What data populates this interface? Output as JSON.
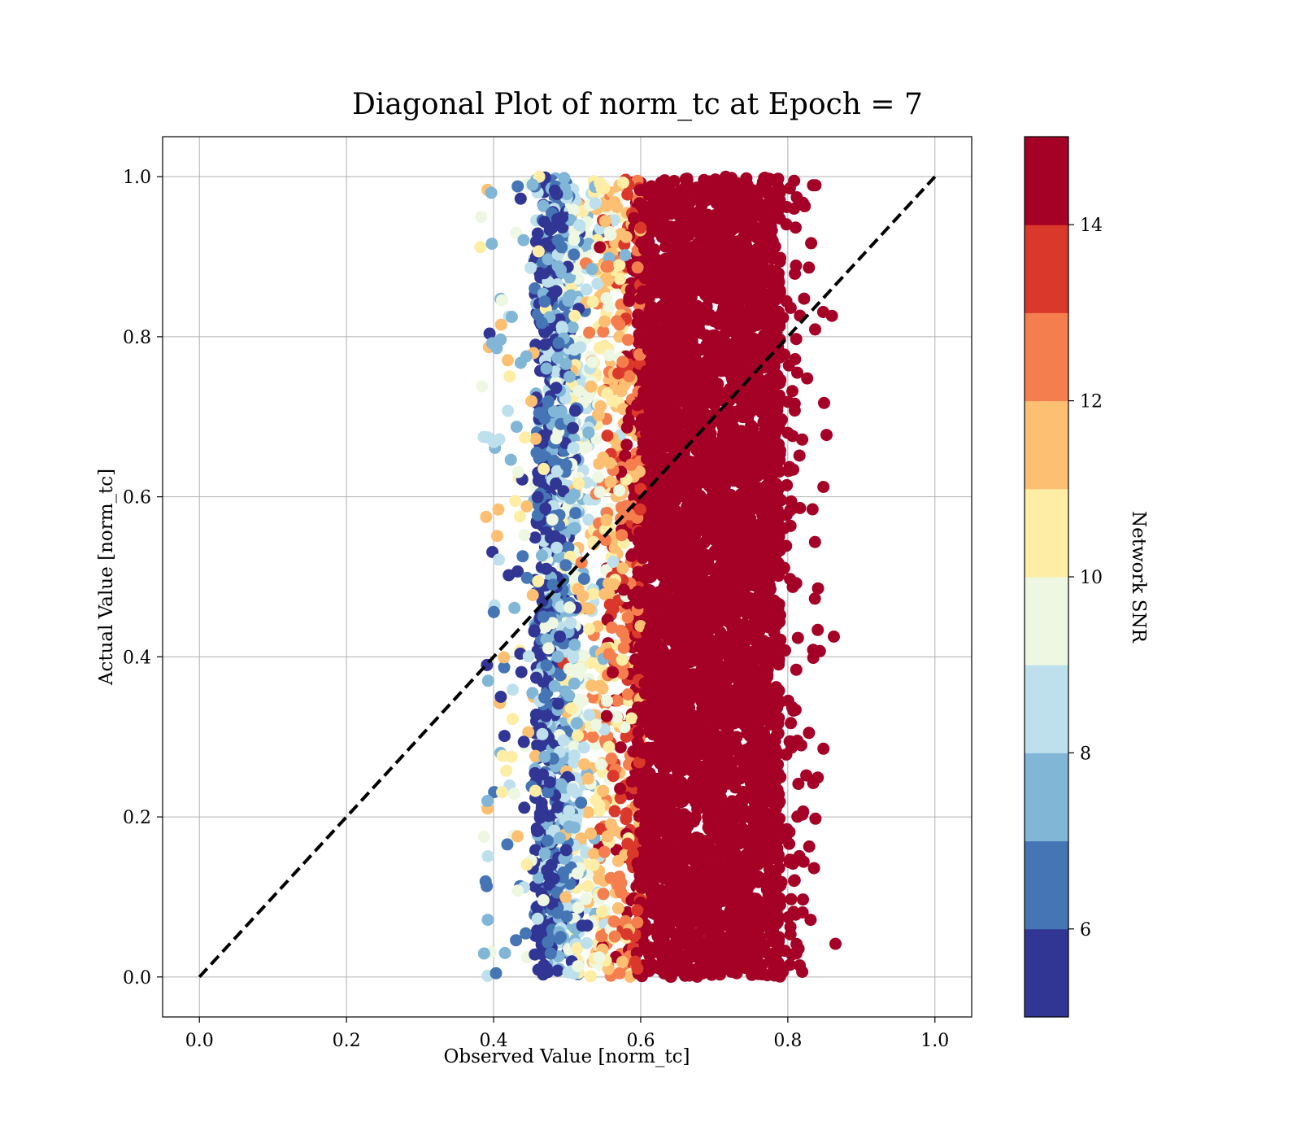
{
  "chart_data": {
    "type": "scatter",
    "title": "Diagonal Plot of norm_tc at Epoch = 7",
    "xlabel": "Observed Value [norm_tc]",
    "ylabel": "Actual Value [norm_tc]",
    "xlim": [
      -0.05,
      1.05
    ],
    "ylim": [
      -0.05,
      1.05
    ],
    "xticks": [
      "0.0",
      "0.2",
      "0.4",
      "0.6",
      "0.8",
      "1.0"
    ],
    "yticks": [
      "0.0",
      "0.2",
      "0.4",
      "0.6",
      "0.8",
      "1.0"
    ],
    "grid": true,
    "reference_line": {
      "x": [
        0,
        1
      ],
      "y": [
        0,
        1
      ],
      "style": "dashed",
      "color": "#000000"
    },
    "colorbar": {
      "label": "Network SNR",
      "range": [
        5,
        15
      ],
      "ticks": [
        "6",
        "8",
        "10",
        "12",
        "14"
      ],
      "colors": [
        "#313695",
        "#4575b4",
        "#74add1",
        "#abd9e9",
        "#e0f3f8",
        "#ffffbf",
        "#fee090",
        "#fdae61",
        "#f46d43",
        "#d73027",
        "#a50026"
      ],
      "bins": [
        {
          "from": 5,
          "to": 6,
          "color": "#313695"
        },
        {
          "from": 6,
          "to": 7,
          "color": "#4575b4"
        },
        {
          "from": 7,
          "to": 8,
          "color": "#81b6d7"
        },
        {
          "from": 8,
          "to": 9,
          "color": "#bde0ec"
        },
        {
          "from": 9,
          "to": 10,
          "color": "#eef7e1"
        },
        {
          "from": 10,
          "to": 11,
          "color": "#feeda4"
        },
        {
          "from": 11,
          "to": 12,
          "color": "#fdbf71"
        },
        {
          "from": 12,
          "to": 13,
          "color": "#f57e4e"
        },
        {
          "from": 13,
          "to": 14,
          "color": "#da382a"
        },
        {
          "from": 14,
          "to": 15,
          "color": "#a50026"
        }
      ]
    },
    "point_cloud": {
      "x_range": [
        0.36,
        0.87
      ],
      "y_range": [
        0.0,
        1.0
      ],
      "dense_core_x": [
        0.59,
        0.79
      ],
      "snr_gradient": "low SNR at x≈0.45 rising to high SNR at x≥0.6"
    }
  }
}
